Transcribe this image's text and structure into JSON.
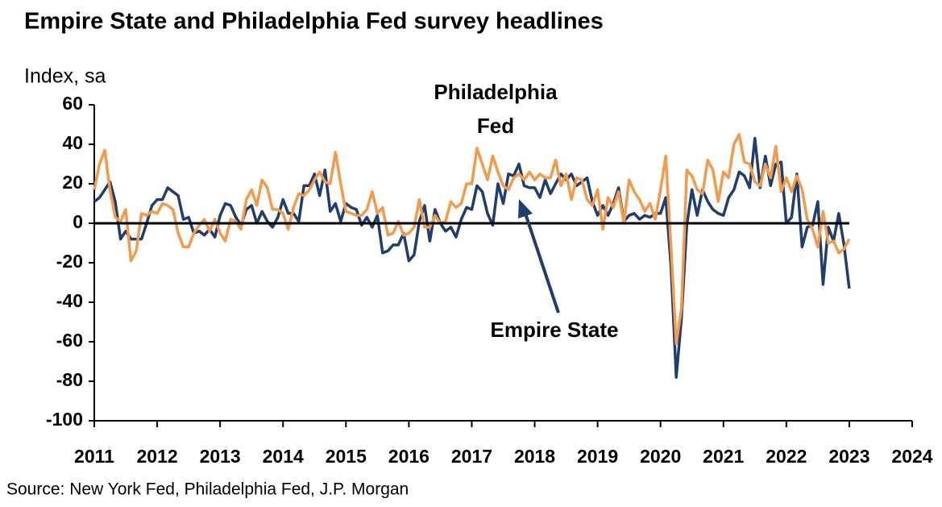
{
  "chart_data": {
    "type": "line",
    "title": "Empire State and Philadelphia Fed survey headlines",
    "y_label": "Index, sa",
    "source": "Source: New York Fed, Philadelphia Fed, J.P. Morgan",
    "annotations": [
      "Philadelphia",
      "Fed",
      "Empire State"
    ],
    "xlim": [
      2011,
      2024
    ],
    "xticks": [
      2011,
      2012,
      2013,
      2014,
      2015,
      2016,
      2017,
      2018,
      2019,
      2020,
      2021,
      2022,
      2023,
      2024
    ],
    "ylim": [
      -100,
      60
    ],
    "yticks": [
      -100,
      -80,
      -60,
      -40,
      -20,
      0,
      20,
      40,
      60
    ],
    "zero_line": true,
    "x": [
      2011,
      2011.083,
      2011.167,
      2011.25,
      2011.333,
      2011.417,
      2011.5,
      2011.583,
      2011.667,
      2011.75,
      2011.833,
      2011.917,
      2012,
      2012.083,
      2012.167,
      2012.25,
      2012.333,
      2012.417,
      2012.5,
      2012.583,
      2012.667,
      2012.75,
      2012.833,
      2012.917,
      2013,
      2013.083,
      2013.167,
      2013.25,
      2013.333,
      2013.417,
      2013.5,
      2013.583,
      2013.667,
      2013.75,
      2013.833,
      2013.917,
      2014,
      2014.083,
      2014.167,
      2014.25,
      2014.333,
      2014.417,
      2014.5,
      2014.583,
      2014.667,
      2014.75,
      2014.833,
      2014.917,
      2015,
      2015.083,
      2015.167,
      2015.25,
      2015.333,
      2015.417,
      2015.5,
      2015.583,
      2015.667,
      2015.75,
      2015.833,
      2015.917,
      2016,
      2016.083,
      2016.167,
      2016.25,
      2016.333,
      2016.417,
      2016.5,
      2016.583,
      2016.667,
      2016.75,
      2016.833,
      2016.917,
      2017,
      2017.083,
      2017.167,
      2017.25,
      2017.333,
      2017.417,
      2017.5,
      2017.583,
      2017.667,
      2017.75,
      2017.833,
      2017.917,
      2018,
      2018.083,
      2018.167,
      2018.25,
      2018.333,
      2018.417,
      2018.5,
      2018.583,
      2018.667,
      2018.75,
      2018.833,
      2018.917,
      2019,
      2019.083,
      2019.167,
      2019.25,
      2019.333,
      2019.417,
      2019.5,
      2019.583,
      2019.667,
      2019.75,
      2019.833,
      2019.917,
      2020,
      2020.083,
      2020.167,
      2020.25,
      2020.333,
      2020.417,
      2020.5,
      2020.583,
      2020.667,
      2020.75,
      2020.833,
      2020.917,
      2021,
      2021.083,
      2021.167,
      2021.25,
      2021.333,
      2021.417,
      2021.5,
      2021.583,
      2021.667,
      2021.75,
      2021.833,
      2021.917,
      2022,
      2022.083,
      2022.167,
      2022.25,
      2022.333,
      2022.417,
      2022.5,
      2022.583,
      2022.667,
      2022.75,
      2022.833,
      2022.917,
      2023
    ],
    "series": [
      {
        "name": "Empire State",
        "color": "#1f3d6e",
        "values": [
          11,
          13,
          17,
          21,
          11,
          -8,
          -4,
          -8,
          -8,
          -8,
          0,
          9,
          12,
          12,
          18,
          16,
          14,
          2,
          3,
          -5,
          -4,
          -6,
          -3,
          -7,
          4,
          10,
          9,
          3,
          -1,
          7,
          9,
          0,
          6,
          1,
          -2,
          3,
          12,
          5,
          5,
          1,
          19,
          19,
          25,
          14,
          27,
          6,
          10,
          1,
          10,
          8,
          7,
          -1,
          3,
          -2,
          4,
          -15,
          -14,
          -11,
          -11,
          -5,
          -19,
          -16,
          1,
          9,
          -9,
          7,
          0,
          -4,
          -2,
          -7,
          2,
          8,
          7,
          19,
          16,
          5,
          -1,
          20,
          10,
          25,
          24,
          30,
          19,
          18,
          18,
          13,
          22,
          15,
          20,
          25,
          22,
          25,
          19,
          21,
          23,
          11,
          4,
          9,
          4,
          10,
          18,
          1,
          4,
          5,
          2,
          4,
          3,
          5,
          5,
          13,
          -22,
          -78,
          -48,
          -1,
          17,
          4,
          17,
          11,
          7,
          5,
          4,
          13,
          17,
          26,
          24,
          18,
          43,
          18,
          34,
          19,
          30,
          31,
          0,
          3,
          25,
          -12,
          -2,
          -1,
          11,
          -31,
          -2,
          -9,
          5,
          -11,
          -33
        ]
      },
      {
        "name": "Philadelphia Fed",
        "color": "#f39b4a",
        "values": [
          17,
          30,
          37,
          17,
          3,
          1,
          7,
          -19,
          -14,
          5,
          4,
          6,
          5,
          10,
          9,
          7,
          -5,
          -12,
          -12,
          -5,
          -1,
          2,
          -4,
          2,
          -5,
          -9,
          2,
          1,
          -3,
          12,
          17,
          9,
          22,
          18,
          7,
          7,
          5,
          -3,
          8,
          15,
          14,
          17,
          22,
          26,
          21,
          20,
          36,
          20,
          6,
          5,
          4,
          4,
          7,
          16,
          5,
          8,
          -6,
          -5,
          1,
          -6,
          -5,
          -2,
          12,
          -2,
          -2,
          4,
          0,
          1,
          11,
          8,
          10,
          20,
          20,
          38,
          30,
          22,
          34,
          26,
          19,
          17,
          23,
          25,
          22,
          26,
          22,
          25,
          23,
          23,
          32,
          19,
          25,
          12,
          23,
          22,
          12,
          9,
          17,
          -3,
          13,
          8,
          16,
          0,
          22,
          16,
          12,
          6,
          10,
          2,
          17,
          34,
          -12,
          -61,
          -43,
          27,
          24,
          17,
          15,
          32,
          27,
          11,
          26,
          23,
          40,
          45,
          31,
          30,
          21,
          19,
          30,
          23,
          39,
          16,
          23,
          16,
          24,
          17,
          2,
          -3,
          -12,
          6,
          -10,
          -9,
          -15,
          -13,
          -8
        ]
      }
    ]
  }
}
